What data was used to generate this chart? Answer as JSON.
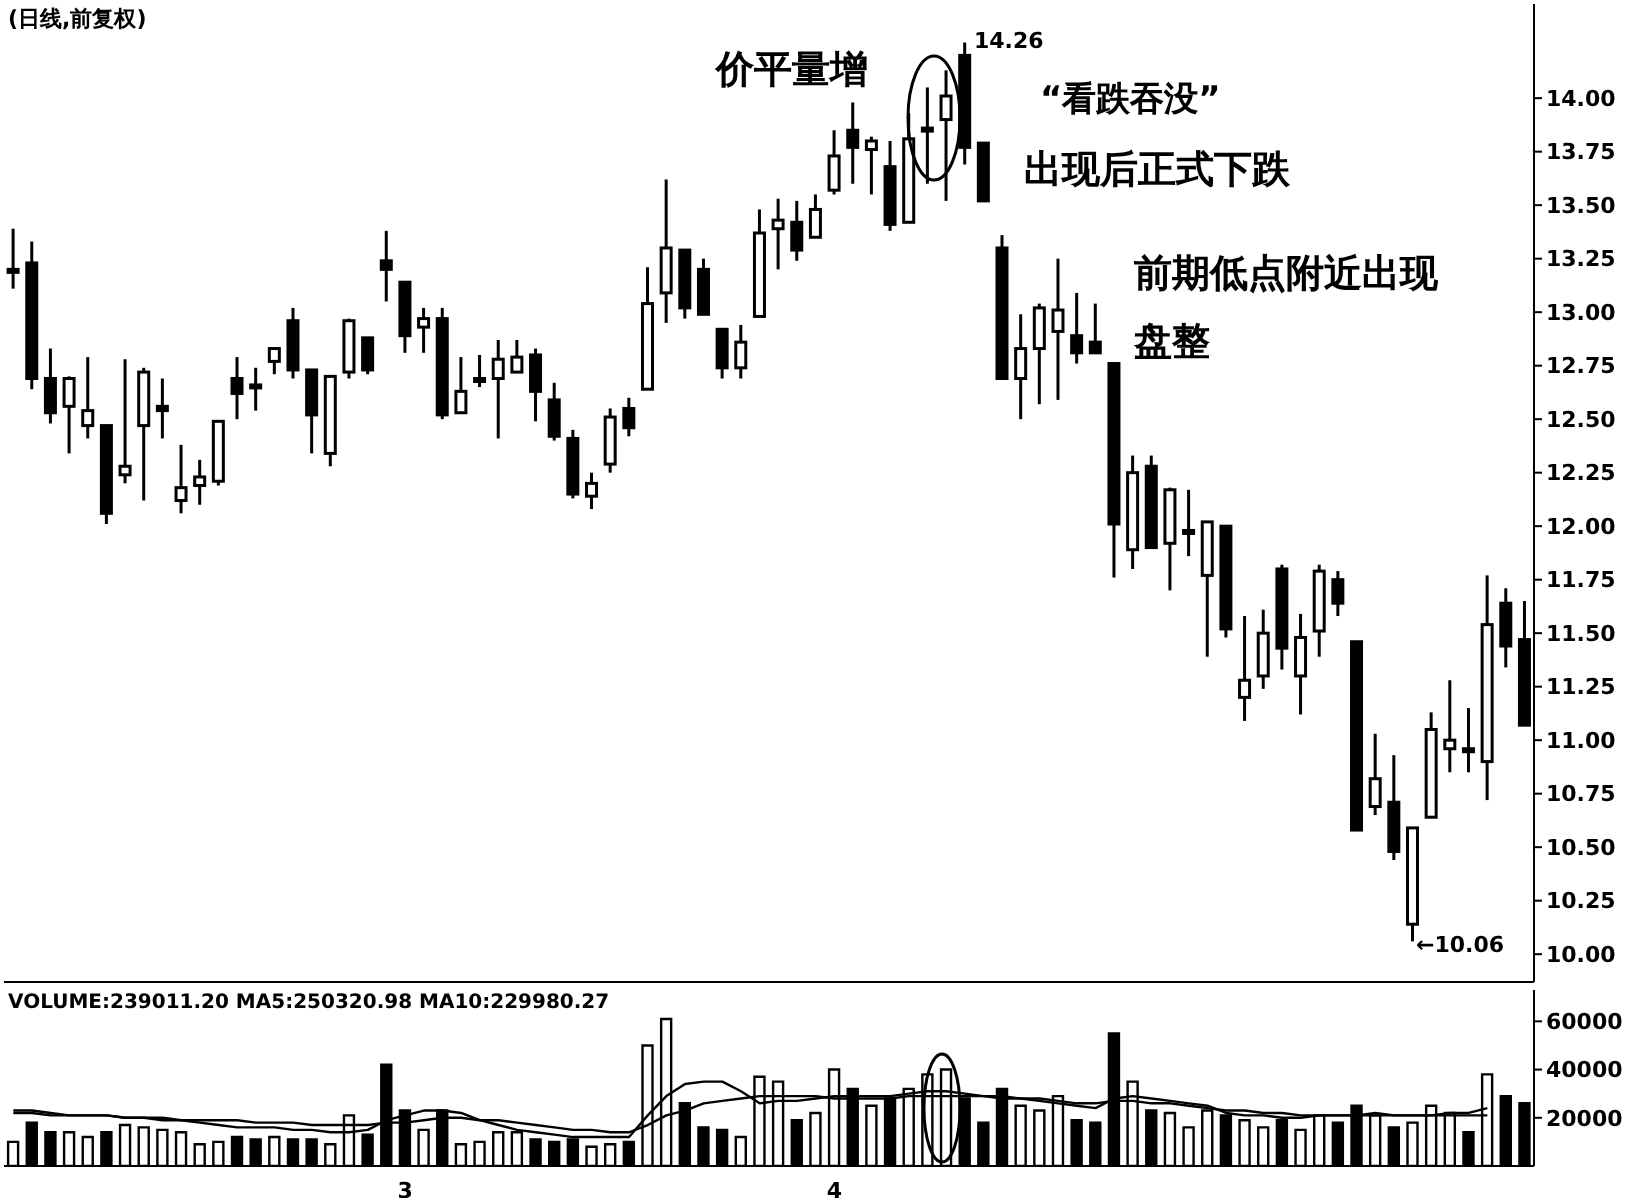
{
  "chart_data": [
    {
      "type": "candlestick",
      "title": "(日线,前复权)",
      "tick_labels": "y",
      "categories": [
        null,
        null,
        null,
        null,
        null,
        null,
        null,
        null,
        null,
        null,
        null,
        null,
        null,
        null,
        null,
        null,
        null,
        null,
        null,
        null,
        null,
        null,
        null,
        null,
        null,
        null,
        null,
        null,
        null,
        null,
        null,
        null,
        null,
        null,
        null,
        null,
        null,
        null,
        null,
        null,
        null,
        null,
        null,
        null,
        null,
        null,
        null,
        null,
        null,
        null,
        null,
        null,
        null,
        null,
        null,
        null,
        null,
        null,
        null,
        null,
        null,
        null,
        null,
        null,
        null,
        null,
        null,
        null,
        null,
        null,
        null,
        null,
        null,
        null,
        null,
        null,
        null,
        null,
        null,
        null,
        null,
        null
      ],
      "ohlc": [
        [
          13.2,
          13.39,
          13.11,
          13.2
        ],
        [
          13.23,
          13.33,
          12.64,
          12.69
        ],
        [
          12.69,
          12.83,
          12.48,
          12.53
        ],
        [
          12.56,
          12.7,
          12.34,
          12.69
        ],
        [
          12.47,
          12.79,
          12.41,
          12.54
        ],
        [
          12.47,
          12.47,
          12.01,
          12.06
        ],
        [
          12.24,
          12.78,
          12.2,
          12.28
        ],
        [
          12.47,
          12.74,
          12.12,
          12.72
        ],
        [
          12.56,
          12.69,
          12.41,
          12.54
        ],
        [
          12.12,
          12.38,
          12.06,
          12.18
        ],
        [
          12.19,
          12.31,
          12.1,
          12.23
        ],
        [
          12.21,
          12.49,
          12.19,
          12.49
        ],
        [
          12.69,
          12.79,
          12.5,
          12.62
        ],
        [
          12.66,
          12.74,
          12.54,
          12.65
        ],
        [
          12.77,
          12.83,
          12.71,
          12.83
        ],
        [
          12.96,
          13.02,
          12.69,
          12.73
        ],
        [
          12.73,
          12.73,
          12.34,
          12.52
        ],
        [
          12.34,
          12.7,
          12.28,
          12.7
        ],
        [
          12.72,
          12.97,
          12.69,
          12.96
        ],
        [
          12.88,
          12.88,
          12.71,
          12.73
        ],
        [
          13.24,
          13.38,
          13.05,
          13.2
        ],
        [
          13.14,
          13.14,
          12.81,
          12.89
        ],
        [
          12.93,
          13.02,
          12.81,
          12.97
        ],
        [
          12.97,
          13.02,
          12.5,
          12.52
        ],
        [
          12.53,
          12.79,
          12.53,
          12.63
        ],
        [
          12.69,
          12.8,
          12.65,
          12.69
        ],
        [
          12.69,
          12.87,
          12.41,
          12.78
        ],
        [
          12.72,
          12.87,
          12.72,
          12.79
        ],
        [
          12.8,
          12.83,
          12.49,
          12.63
        ],
        [
          12.59,
          12.67,
          12.4,
          12.42
        ],
        [
          12.41,
          12.45,
          12.13,
          12.15
        ],
        [
          12.14,
          12.25,
          12.08,
          12.2
        ],
        [
          12.29,
          12.55,
          12.25,
          12.51
        ],
        [
          12.55,
          12.6,
          12.42,
          12.46
        ],
        [
          12.64,
          13.21,
          12.64,
          13.04
        ],
        [
          13.09,
          13.62,
          12.95,
          13.3
        ],
        [
          13.29,
          13.29,
          12.97,
          13.02
        ],
        [
          13.2,
          13.25,
          12.99,
          12.99
        ],
        [
          12.92,
          12.92,
          12.69,
          12.74
        ],
        [
          12.74,
          12.94,
          12.69,
          12.86
        ],
        [
          12.98,
          13.48,
          12.98,
          13.37
        ],
        [
          13.39,
          13.53,
          13.2,
          13.43
        ],
        [
          13.42,
          13.52,
          13.24,
          13.29
        ],
        [
          13.35,
          13.55,
          13.35,
          13.48
        ],
        [
          13.57,
          13.85,
          13.55,
          13.73
        ],
        [
          13.85,
          13.98,
          13.6,
          13.77
        ],
        [
          13.76,
          13.82,
          13.55,
          13.8
        ],
        [
          13.68,
          13.8,
          13.38,
          13.41
        ],
        [
          13.42,
          13.93,
          13.42,
          13.81
        ],
        [
          13.86,
          14.05,
          13.6,
          13.86
        ],
        [
          13.9,
          14.13,
          13.52,
          14.01
        ],
        [
          14.2,
          14.26,
          13.69,
          13.77
        ],
        [
          13.79,
          13.79,
          13.52,
          13.52
        ],
        [
          13.3,
          13.36,
          12.69,
          12.69
        ],
        [
          12.69,
          12.99,
          12.5,
          12.83
        ],
        [
          12.83,
          13.04,
          12.57,
          13.02
        ],
        [
          12.91,
          13.25,
          12.59,
          13.01
        ],
        [
          12.89,
          13.09,
          12.76,
          12.81
        ],
        [
          12.86,
          13.04,
          12.81,
          12.81
        ],
        [
          12.76,
          12.76,
          11.76,
          12.01
        ],
        [
          11.89,
          12.33,
          11.8,
          12.25
        ],
        [
          12.28,
          12.33,
          11.9,
          11.9
        ],
        [
          11.92,
          12.18,
          11.7,
          12.17
        ],
        [
          11.98,
          12.17,
          11.86,
          11.97
        ],
        [
          11.77,
          12.02,
          11.39,
          12.02
        ],
        [
          12.0,
          12.0,
          11.48,
          11.52
        ],
        [
          11.2,
          11.58,
          11.09,
          11.28
        ],
        [
          11.3,
          11.61,
          11.24,
          11.5
        ],
        [
          11.8,
          11.82,
          11.33,
          11.43
        ],
        [
          11.3,
          11.59,
          11.12,
          11.48
        ],
        [
          11.51,
          11.82,
          11.39,
          11.79
        ],
        [
          11.75,
          11.79,
          11.58,
          11.64
        ],
        [
          11.46,
          11.46,
          10.58,
          10.58
        ],
        [
          10.69,
          11.03,
          10.65,
          10.82
        ],
        [
          10.71,
          10.93,
          10.44,
          10.48
        ],
        [
          10.14,
          10.59,
          10.06,
          10.59
        ],
        [
          10.64,
          11.13,
          10.64,
          11.05
        ],
        [
          10.96,
          11.28,
          10.85,
          11.0
        ],
        [
          10.96,
          11.15,
          10.85,
          10.96
        ],
        [
          10.9,
          11.77,
          10.72,
          11.54
        ],
        [
          11.64,
          11.71,
          11.34,
          11.44
        ],
        [
          11.47,
          11.65,
          11.07,
          11.07
        ]
      ],
      "ylim": [
        9.87,
        14.44
      ],
      "yticks": [
        {
          "value": 10,
          "label": "10.00"
        },
        {
          "value": 10.25,
          "label": "10.25"
        },
        {
          "value": 10.5,
          "label": "10.50"
        },
        {
          "value": 10.75,
          "label": "10.75"
        },
        {
          "value": 11,
          "label": "11.00"
        },
        {
          "value": 11.25,
          "label": "11.25"
        },
        {
          "value": 11.5,
          "label": "11.50"
        },
        {
          "value": 11.75,
          "label": "11.75"
        },
        {
          "value": 12,
          "label": "12.00"
        },
        {
          "value": 12.25,
          "label": "12.25"
        },
        {
          "value": 12.5,
          "label": "12.50"
        },
        {
          "value": 12.75,
          "label": "12.75"
        },
        {
          "value": 13,
          "label": "13.00"
        },
        {
          "value": 13.25,
          "label": "13.25"
        },
        {
          "value": 13.5,
          "label": "13.50"
        },
        {
          "value": 13.75,
          "label": "13.75"
        },
        {
          "value": 14,
          "label": "14.00"
        }
      ],
      "annotations": [
        "价平量增",
        "“看跌吞没”",
        "出现后正式下跌",
        "前期低点附近出现",
        "盘整",
        "14.26",
        "←10.06"
      ]
    },
    {
      "type": "bar",
      "categories": [
        null,
        null,
        null,
        null,
        null,
        null,
        null,
        null,
        null,
        null,
        null,
        null,
        null,
        null,
        null,
        null,
        null,
        null,
        null,
        null,
        null,
        "3",
        null,
        null,
        null,
        null,
        null,
        null,
        null,
        null,
        null,
        null,
        null,
        null,
        null,
        null,
        null,
        null,
        null,
        null,
        null,
        null,
        null,
        null,
        "4",
        null,
        null,
        null,
        null,
        null,
        null,
        null,
        null,
        null,
        null,
        null,
        null,
        null,
        null,
        null,
        null,
        null,
        null,
        null,
        null,
        null,
        null,
        null,
        null,
        null,
        null,
        null,
        null,
        null,
        null,
        null,
        null,
        null,
        null,
        null,
        null,
        null
      ],
      "ylim": [
        0,
        73000
      ],
      "yticks": [
        20000,
        40000,
        60000
      ],
      "annotations": [
        "VOLUME:239011.20 MA5:250320.98 MA10:229980.27"
      ],
      "series": [
        {
          "type": "bar",
          "values": [
            10000,
            18000,
            14000,
            14000,
            12000,
            14000,
            17000,
            16000,
            15000,
            14000,
            9000,
            10000,
            12000,
            11000,
            12000,
            11000,
            11000,
            9000,
            21000,
            13000,
            42000,
            23000,
            15000,
            23000,
            9000,
            10000,
            14000,
            14000,
            11000,
            10000,
            11000,
            8000,
            9000,
            10000,
            50000,
            61000,
            26000,
            16000,
            15000,
            12000,
            37000,
            35000,
            19000,
            22000,
            40000,
            32000,
            25000,
            28000,
            32000,
            38000,
            40000,
            28000,
            18000,
            32000,
            25000,
            23000,
            29000,
            19000,
            18000,
            55000,
            35000,
            23000,
            22000,
            16000,
            23000,
            21000,
            19000,
            16000,
            19000,
            15000,
            21000,
            18000,
            25000,
            21000,
            16000,
            18000,
            25000,
            22000,
            14000,
            38000,
            29000,
            26000
          ],
          "colors": [
            "#ffffff",
            "#000000",
            "#000000",
            "#ffffff",
            "#ffffff",
            "#000000",
            "#ffffff",
            "#ffffff",
            "#ffffff",
            "#ffffff",
            "#ffffff",
            "#ffffff",
            "#000000",
            "#000000",
            "#ffffff",
            "#000000",
            "#000000",
            "#ffffff",
            "#ffffff",
            "#000000",
            "#000000",
            "#000000",
            "#ffffff",
            "#000000",
            "#ffffff",
            "#ffffff",
            "#ffffff",
            "#ffffff",
            "#000000",
            "#000000",
            "#000000",
            "#ffffff",
            "#ffffff",
            "#000000",
            "#ffffff",
            "#ffffff",
            "#000000",
            "#000000",
            "#000000",
            "#ffffff",
            "#ffffff",
            "#ffffff",
            "#000000",
            "#ffffff",
            "#ffffff",
            "#000000",
            "#ffffff",
            "#000000",
            "#ffffff",
            "#ffffff",
            "#ffffff",
            "#000000",
            "#000000",
            "#000000",
            "#ffffff",
            "#ffffff",
            "#ffffff",
            "#000000",
            "#000000",
            "#000000",
            "#ffffff",
            "#000000",
            "#ffffff",
            "#ffffff",
            "#ffffff",
            "#000000",
            "#ffffff",
            "#ffffff",
            "#000000",
            "#ffffff",
            "#ffffff",
            "#000000",
            "#000000",
            "#ffffff",
            "#000000",
            "#ffffff",
            "#ffffff",
            "#ffffff",
            "#000000",
            "#ffffff",
            "#000000",
            "#000000"
          ]
        },
        {
          "type": "line",
          "color": "#000000",
          "values": [
            23000,
            23000,
            22000,
            21000,
            21000,
            21000,
            20000,
            20000,
            19000,
            19000,
            18000,
            17000,
            16000,
            16000,
            16000,
            15000,
            15000,
            14000,
            14000,
            15000,
            19000,
            21000,
            23000,
            23000,
            22000,
            19000,
            17000,
            15000,
            14000,
            13000,
            12000,
            12000,
            12000,
            12000,
            21000,
            29000,
            34000,
            35000,
            35000,
            31000,
            26000,
            27000,
            27000,
            28000,
            29000,
            29000,
            29000,
            29000,
            30000,
            31000,
            31000,
            30000,
            29000,
            29000,
            28000,
            27000,
            26000,
            25000,
            24000,
            28000,
            29000,
            28000,
            27000,
            26000,
            25000,
            22000,
            21000,
            21000,
            20000,
            20000,
            21000,
            21000,
            21000,
            22000,
            21000,
            21000,
            21000,
            22000,
            22000,
            24000,
            null,
            null
          ]
        },
        {
          "type": "line",
          "color": "#000000",
          "values": [
            22000,
            22000,
            21000,
            21000,
            21000,
            21000,
            20000,
            20000,
            20000,
            19000,
            19000,
            19000,
            19000,
            18000,
            18000,
            18000,
            17000,
            17000,
            17000,
            17000,
            18000,
            18000,
            19000,
            20000,
            20000,
            19000,
            19000,
            18000,
            17000,
            16000,
            15000,
            15000,
            14000,
            14000,
            17000,
            21000,
            23000,
            26000,
            27000,
            28000,
            29000,
            29000,
            29000,
            29000,
            28000,
            28000,
            28000,
            28000,
            29000,
            29000,
            29000,
            29000,
            29000,
            28000,
            28000,
            28000,
            27000,
            26000,
            26000,
            27000,
            27000,
            26000,
            26000,
            25000,
            24000,
            23000,
            23000,
            22000,
            22000,
            21000,
            21000,
            21000,
            21000,
            21000,
            21000,
            21000,
            21000,
            21000,
            21000,
            21000,
            null,
            null
          ]
        }
      ]
    }
  ]
}
